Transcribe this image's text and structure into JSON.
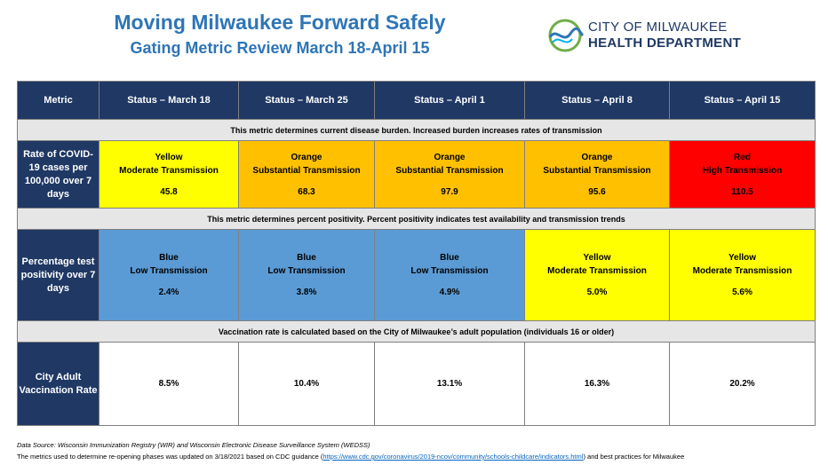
{
  "header": {
    "title": "Moving Milwaukee Forward Safely",
    "subtitle": "Gating Metric Review March 18-April 15",
    "logo_line1": "CITY OF MILWAUKEE",
    "logo_line2": "HEALTH DEPARTMENT"
  },
  "colors": {
    "navy": "#1f3864",
    "yellow": "#ffff00",
    "orange": "#ffc000",
    "red": "#ff0000",
    "blue": "#5b9bd5",
    "note_gray": "#e7e6e6",
    "title_blue": "#2e75b6"
  },
  "table": {
    "columns": [
      "Metric",
      "Status – March 18",
      "Status – March 25",
      "Status – April 1",
      "Status – April 8",
      "Status – April 15"
    ],
    "notes": [
      "This metric determines current disease burden. Increased burden increases rates of transmission",
      "This metric determines percent positivity. Percent positivity indicates test availability and transmission trends",
      "Vaccination rate is calculated based on the City of Milwaukee’s adult population (individuals 16 or older)"
    ],
    "rows": [
      {
        "label": "Rate of COVID-19 cases per 100,000 over 7 days",
        "cells": [
          {
            "color": "Yellow",
            "level": "Moderate Transmission",
            "value": "45.8"
          },
          {
            "color": "Orange",
            "level": "Substantial Transmission",
            "value": "68.3"
          },
          {
            "color": "Orange",
            "level": "Substantial Transmission",
            "value": "97.9"
          },
          {
            "color": "Orange",
            "level": "Substantial Transmission",
            "value": "95.6"
          },
          {
            "color": "Red",
            "level": "High Transmission",
            "value": "110.5"
          }
        ]
      },
      {
        "label": "Percentage test positivity over 7 days",
        "cells": [
          {
            "color": "Blue",
            "level": "Low Transmission",
            "value": "2.4%"
          },
          {
            "color": "Blue",
            "level": "Low Transmission",
            "value": "3.8%"
          },
          {
            "color": "Blue",
            "level": "Low Transmission",
            "value": "4.9%"
          },
          {
            "color": "Yellow",
            "level": "Moderate Transmission",
            "value": "5.0%"
          },
          {
            "color": "Yellow",
            "level": "Moderate Transmission",
            "value": "5.6%"
          }
        ]
      },
      {
        "label": "City Adult Vaccination Rate",
        "cells": [
          {
            "value": "8.5%"
          },
          {
            "value": "10.4%"
          },
          {
            "value": "13.1%"
          },
          {
            "value": "16.3%"
          },
          {
            "value": "20.2%"
          }
        ]
      }
    ]
  },
  "footer": {
    "source": "Data Source: Wisconsin Immunization Registry (WIR) and Wisconsin Electronic Disease Surveillance System (WEDSS)",
    "metrics_prefix": "The metrics used to determine re-opening phases was updated on 3/18/2021 based on CDC guidance (",
    "metrics_link": "https://www.cdc.gov/coronavirus/2019-ncov/community/schools-childcare/indicators.html",
    "metrics_suffix": ") and best practices for Milwaukee"
  }
}
